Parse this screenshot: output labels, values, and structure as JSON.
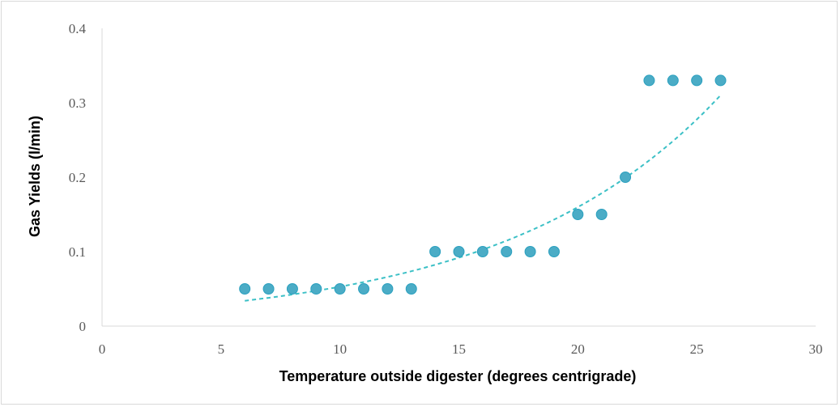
{
  "chart_data": {
    "type": "scatter",
    "xlabel": "Temperature outside digester (degrees centrigrade)",
    "ylabel": "Gas Yields (l/min)",
    "xlim": [
      0,
      30
    ],
    "ylim": [
      0,
      0.4
    ],
    "x_ticks": [
      0,
      5,
      10,
      15,
      20,
      25,
      30
    ],
    "y_ticks": [
      0,
      0.1,
      0.2,
      0.3,
      0.4
    ],
    "x_tick_labels": [
      "0",
      "5",
      "10",
      "15",
      "20",
      "25",
      "30"
    ],
    "y_tick_labels": [
      "0",
      "0.1",
      "0.2",
      "0.3",
      "0.4"
    ],
    "grid": false,
    "legend": "none",
    "colors": {
      "marker": "#4bacc6",
      "marker_stroke": "#2aa0bf",
      "trendline": "#3cc0c6",
      "axis": "#d9d9d9"
    },
    "series": [
      {
        "x": [
          6,
          7,
          8,
          9,
          10,
          11,
          12,
          13,
          14,
          15,
          16,
          17,
          18,
          19,
          20,
          21,
          22,
          23,
          24,
          25,
          26
        ],
        "y": [
          0.05,
          0.05,
          0.05,
          0.05,
          0.05,
          0.05,
          0.05,
          0.05,
          0.1,
          0.1,
          0.1,
          0.1,
          0.1,
          0.1,
          0.15,
          0.15,
          0.2,
          0.33,
          0.33,
          0.33,
          0.33
        ]
      }
    ],
    "trendline": {
      "type": "exponential",
      "style": "dashed",
      "x_range": [
        6,
        26
      ],
      "y_start": 0.034,
      "y_end": 0.31
    }
  }
}
